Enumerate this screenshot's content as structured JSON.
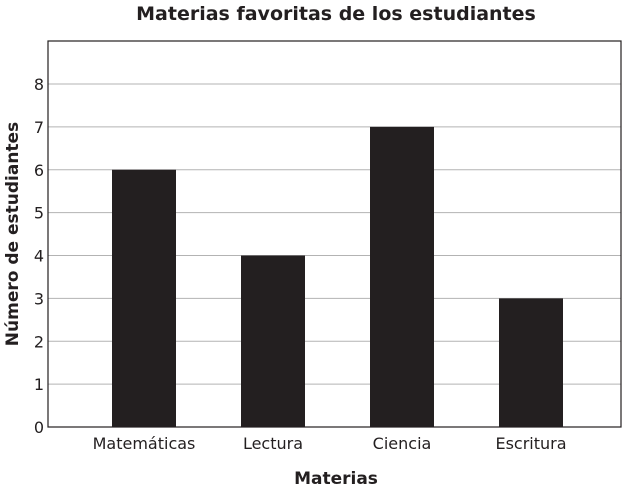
{
  "chart_data": {
    "type": "bar",
    "title": "Materias favoritas de los estudiantes",
    "xlabel": "Materias",
    "ylabel": "Número de estudiantes",
    "categories": [
      "Matemáticas",
      "Lectura",
      "Ciencia",
      "Escritura"
    ],
    "values": [
      6,
      4,
      7,
      3
    ],
    "ylim": [
      0,
      9
    ],
    "yticks": [
      0,
      1,
      2,
      3,
      4,
      5,
      6,
      7,
      8
    ],
    "grid": true,
    "bar_color": "#231f20",
    "grid_color": "#b3b3b3",
    "frame_color": "#231f20"
  }
}
